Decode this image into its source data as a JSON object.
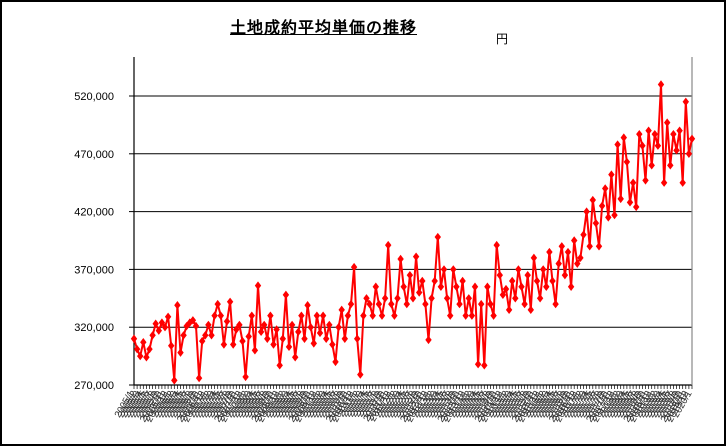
{
  "chart_data": {
    "type": "line",
    "title": "土地成約平均単価の推移",
    "unit_label": "円",
    "xlabel": "",
    "ylabel": "円",
    "ylim": [
      270000,
      545000
    ],
    "y_ticks": [
      270000,
      320000,
      370000,
      420000,
      470000,
      520000
    ],
    "grid": true,
    "legend": false,
    "series_name": "土地成約平均単価",
    "series_color": "#ff0000",
    "grid_color": "#000000",
    "right_border_color": "#888888",
    "categories": [
      "2005/1",
      "2005/2",
      "2005/3",
      "2005/4",
      "2005/5",
      "2005/6",
      "2005/7",
      "2005/8",
      "2005/9",
      "2005/10",
      "2005/11",
      "2005/12",
      "2006/1",
      "2006/2",
      "2006/3",
      "2006/4",
      "2006/5",
      "2006/6",
      "2006/7",
      "2006/8",
      "2006/9",
      "2006/10",
      "2006/11",
      "2006/12",
      "2007/1",
      "2007/2",
      "2007/3",
      "2007/4",
      "2007/5",
      "2007/6",
      "2007/7",
      "2007/8",
      "2007/9",
      "2007/10",
      "2007/11",
      "2007/12",
      "2008/1",
      "2008/2",
      "2008/3",
      "2008/4",
      "2008/5",
      "2008/6",
      "2008/7",
      "2008/8",
      "2008/9",
      "2008/10",
      "2008/11",
      "2008/12",
      "2009/1",
      "2009/2",
      "2009/3",
      "2009/4",
      "2009/5",
      "2009/6",
      "2009/7",
      "2009/8",
      "2009/9",
      "2009/10",
      "2009/11",
      "2009/12",
      "2010/1",
      "2010/2",
      "2010/3",
      "2010/4",
      "2010/5",
      "2010/6",
      "2010/7",
      "2010/8",
      "2010/9",
      "2010/10",
      "2010/11",
      "2010/12",
      "2011/1",
      "2011/2",
      "2011/3",
      "2011/4",
      "2011/5",
      "2011/6",
      "2011/7",
      "2011/8",
      "2011/9",
      "2011/10",
      "2011/11",
      "2011/12",
      "2012/1",
      "2012/2",
      "2012/3",
      "2012/4",
      "2012/5",
      "2012/6",
      "2012/7",
      "2012/8",
      "2012/9",
      "2012/10",
      "2012/11",
      "2012/12",
      "2013/1",
      "2013/2",
      "2013/3",
      "2013/4",
      "2013/5",
      "2013/6",
      "2013/7",
      "2013/8",
      "2013/9",
      "2013/10",
      "2013/11",
      "2013/12",
      "2014/1",
      "2014/2",
      "2014/3",
      "2014/4",
      "2014/5",
      "2014/6",
      "2014/7",
      "2014/8",
      "2014/9",
      "2014/10",
      "2014/11",
      "2014/12",
      "2015/1",
      "2015/2",
      "2015/3",
      "2015/4",
      "2015/5",
      "2015/6",
      "2015/7",
      "2015/8",
      "2015/9",
      "2015/10",
      "2015/11",
      "2015/12",
      "2016/1",
      "2016/2",
      "2016/3",
      "2016/4",
      "2016/5",
      "2016/6",
      "2016/7",
      "2016/8",
      "2016/9",
      "2016/10",
      "2016/11",
      "2016/12",
      "2017/1",
      "2017/2",
      "2017/3",
      "2017/4",
      "2017/5",
      "2017/6",
      "2017/7",
      "2017/8",
      "2017/9",
      "2017/10",
      "2017/11",
      "2017/12",
      "2018/1",
      "2018/2",
      "2018/3",
      "2018/4",
      "2018/5",
      "2018/6",
      "2018/7",
      "2018/8",
      "2018/9",
      "2018/10",
      "2018/11",
      "2018/12",
      "2019/1",
      "2019/2",
      "2019/3",
      "2019/4",
      "2019/5",
      "2019/6",
      "2019/7",
      "2019/8",
      "2019/9",
      "2019/10",
      "2019/11",
      "2019/12",
      "2020/1"
    ],
    "values": [
      310000,
      301000,
      295000,
      307000,
      294000,
      301000,
      313000,
      323000,
      317000,
      324000,
      320000,
      329000,
      304000,
      274000,
      339000,
      298000,
      313000,
      321000,
      324000,
      326000,
      321000,
      276000,
      308000,
      313000,
      322000,
      313000,
      330000,
      340000,
      330000,
      305000,
      325000,
      342000,
      305000,
      318000,
      322000,
      308000,
      277000,
      312000,
      330000,
      300000,
      356000,
      316000,
      322000,
      310000,
      330000,
      305000,
      318000,
      287000,
      310000,
      348000,
      303000,
      322000,
      294000,
      316000,
      330000,
      310000,
      339000,
      320000,
      306000,
      330000,
      315000,
      330000,
      310000,
      322000,
      305000,
      290000,
      320000,
      335000,
      310000,
      330000,
      340000,
      372000,
      310000,
      279000,
      330000,
      345000,
      340000,
      330000,
      355000,
      340000,
      330000,
      345000,
      391000,
      340000,
      330000,
      345000,
      379000,
      355000,
      340000,
      365000,
      345000,
      381000,
      350000,
      360000,
      340000,
      309000,
      345000,
      360000,
      398000,
      355000,
      370000,
      345000,
      330000,
      370000,
      355000,
      340000,
      360000,
      330000,
      345000,
      330000,
      355000,
      288000,
      340000,
      287000,
      355000,
      340000,
      330000,
      391000,
      365000,
      348000,
      353000,
      335000,
      360000,
      345000,
      370000,
      355000,
      340000,
      365000,
      335000,
      380000,
      360000,
      345000,
      370000,
      355000,
      385000,
      360000,
      340000,
      375000,
      390000,
      365000,
      385000,
      355000,
      395000,
      375000,
      380000,
      400000,
      420000,
      390000,
      430000,
      410000,
      390000,
      425000,
      440000,
      415000,
      452000,
      417000,
      478000,
      431000,
      484000,
      463000,
      428000,
      445000,
      424000,
      487000,
      477000,
      447000,
      490000,
      460000,
      487000,
      477000,
      530000,
      445000,
      497000,
      460000,
      487000,
      473000,
      490000,
      445000,
      515000,
      470000,
      483000
    ]
  }
}
